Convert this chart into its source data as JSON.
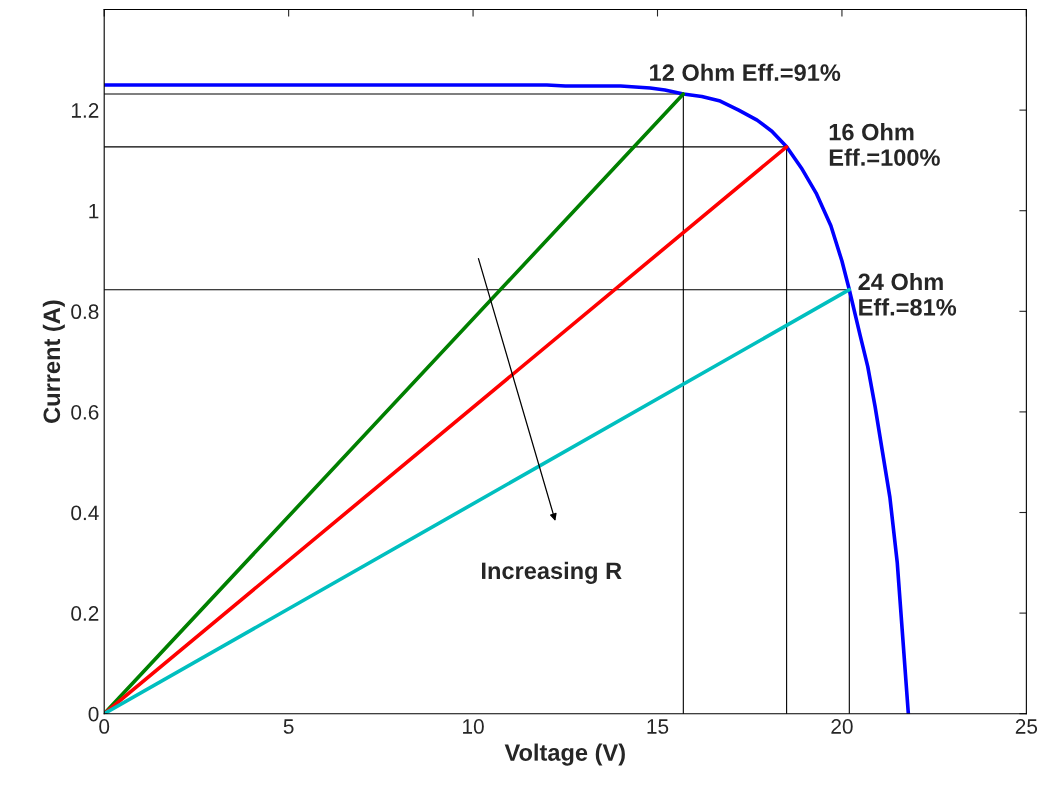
{
  "chart_data": {
    "type": "line",
    "xlabel": "Voltage (V)",
    "ylabel": "Current (A)",
    "xlim": [
      0,
      25
    ],
    "ylim": [
      0,
      1.4
    ],
    "xticks": [
      0,
      5,
      10,
      15,
      20,
      25
    ],
    "yticks": [
      0,
      0.2,
      0.4,
      0.6,
      0.8,
      1,
      1.2
    ],
    "grid": false,
    "legend": false,
    "marker": "none",
    "line_style": "solid",
    "series": [
      {
        "color": "#000000",
        "x": [
          0,
          15.7,
          15.7
        ],
        "values": [
          1.232,
          1.232,
          0
        ]
      },
      {
        "color": "#000000",
        "x": [
          0,
          18.5,
          18.5
        ],
        "values": [
          1.127,
          1.127,
          0
        ]
      },
      {
        "color": "#000000",
        "x": [
          0,
          20.2,
          20.2
        ],
        "values": [
          0.843,
          0.843,
          0
        ]
      },
      {
        "color": "#0000ff",
        "x": [
          0,
          5,
          10,
          12,
          12.5,
          14,
          14.8,
          15.2,
          15.7,
          16.2,
          16.7,
          17.2,
          17.7,
          18.1,
          18.5,
          18.9,
          19.3,
          19.7,
          20.0,
          20.2,
          20.5,
          20.7,
          20.9,
          21.1,
          21.3,
          21.5,
          21.65,
          21.8
        ],
        "values": [
          1.25,
          1.25,
          1.25,
          1.25,
          1.248,
          1.248,
          1.244,
          1.24,
          1.232,
          1.227,
          1.218,
          1.2,
          1.18,
          1.158,
          1.127,
          1.085,
          1.035,
          0.97,
          0.9,
          0.843,
          0.75,
          0.69,
          0.61,
          0.52,
          0.43,
          0.3,
          0.15,
          0
        ]
      },
      {
        "color": "#008000",
        "x": [
          0,
          15.7
        ],
        "values": [
          0,
          1.232
        ]
      },
      {
        "color": "#ff0000",
        "x": [
          0,
          18.5
        ],
        "values": [
          0,
          1.127
        ]
      },
      {
        "color": "#00bfbf",
        "x": [
          0,
          20.2
        ],
        "values": [
          0,
          0.843
        ]
      }
    ],
    "annotations": [
      {
        "text": "12 Ohm Eff.=91%",
        "x": 15.7,
        "y": 1.232
      },
      {
        "text": "16 Ohm\nEff.=100%",
        "x": 18.5,
        "y": 1.127
      },
      {
        "text": "24 Ohm\nEff.=81%",
        "x": 20.2,
        "y": 0.843
      },
      "Increasing R"
    ]
  }
}
